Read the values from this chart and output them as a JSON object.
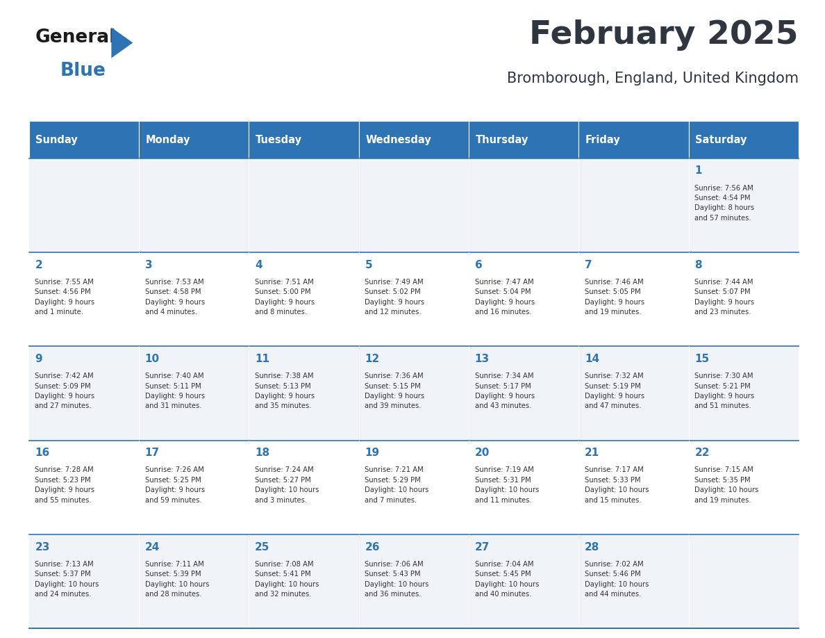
{
  "title": "February 2025",
  "subtitle": "Bromborough, England, United Kingdom",
  "header_bg": "#2E74B5",
  "header_text_color": "#FFFFFF",
  "day_names": [
    "Sunday",
    "Monday",
    "Tuesday",
    "Wednesday",
    "Thursday",
    "Friday",
    "Saturday"
  ],
  "title_color": "#2F3640",
  "subtitle_color": "#2F3640",
  "cell_bg_alt": "#F0F4F8",
  "cell_bg_main": "#FFFFFF",
  "day_number_color": "#2E74B5",
  "info_text_color": "#333333",
  "border_color": "#2E74B5",
  "logo_general_color": "#1A1A1A",
  "logo_blue_color": "#2E74B5",
  "weeks": [
    {
      "days": [
        {
          "date": null,
          "info": null
        },
        {
          "date": null,
          "info": null
        },
        {
          "date": null,
          "info": null
        },
        {
          "date": null,
          "info": null
        },
        {
          "date": null,
          "info": null
        },
        {
          "date": null,
          "info": null
        },
        {
          "date": 1,
          "info": "Sunrise: 7:56 AM\nSunset: 4:54 PM\nDaylight: 8 hours\nand 57 minutes."
        }
      ]
    },
    {
      "days": [
        {
          "date": 2,
          "info": "Sunrise: 7:55 AM\nSunset: 4:56 PM\nDaylight: 9 hours\nand 1 minute."
        },
        {
          "date": 3,
          "info": "Sunrise: 7:53 AM\nSunset: 4:58 PM\nDaylight: 9 hours\nand 4 minutes."
        },
        {
          "date": 4,
          "info": "Sunrise: 7:51 AM\nSunset: 5:00 PM\nDaylight: 9 hours\nand 8 minutes."
        },
        {
          "date": 5,
          "info": "Sunrise: 7:49 AM\nSunset: 5:02 PM\nDaylight: 9 hours\nand 12 minutes."
        },
        {
          "date": 6,
          "info": "Sunrise: 7:47 AM\nSunset: 5:04 PM\nDaylight: 9 hours\nand 16 minutes."
        },
        {
          "date": 7,
          "info": "Sunrise: 7:46 AM\nSunset: 5:05 PM\nDaylight: 9 hours\nand 19 minutes."
        },
        {
          "date": 8,
          "info": "Sunrise: 7:44 AM\nSunset: 5:07 PM\nDaylight: 9 hours\nand 23 minutes."
        }
      ]
    },
    {
      "days": [
        {
          "date": 9,
          "info": "Sunrise: 7:42 AM\nSunset: 5:09 PM\nDaylight: 9 hours\nand 27 minutes."
        },
        {
          "date": 10,
          "info": "Sunrise: 7:40 AM\nSunset: 5:11 PM\nDaylight: 9 hours\nand 31 minutes."
        },
        {
          "date": 11,
          "info": "Sunrise: 7:38 AM\nSunset: 5:13 PM\nDaylight: 9 hours\nand 35 minutes."
        },
        {
          "date": 12,
          "info": "Sunrise: 7:36 AM\nSunset: 5:15 PM\nDaylight: 9 hours\nand 39 minutes."
        },
        {
          "date": 13,
          "info": "Sunrise: 7:34 AM\nSunset: 5:17 PM\nDaylight: 9 hours\nand 43 minutes."
        },
        {
          "date": 14,
          "info": "Sunrise: 7:32 AM\nSunset: 5:19 PM\nDaylight: 9 hours\nand 47 minutes."
        },
        {
          "date": 15,
          "info": "Sunrise: 7:30 AM\nSunset: 5:21 PM\nDaylight: 9 hours\nand 51 minutes."
        }
      ]
    },
    {
      "days": [
        {
          "date": 16,
          "info": "Sunrise: 7:28 AM\nSunset: 5:23 PM\nDaylight: 9 hours\nand 55 minutes."
        },
        {
          "date": 17,
          "info": "Sunrise: 7:26 AM\nSunset: 5:25 PM\nDaylight: 9 hours\nand 59 minutes."
        },
        {
          "date": 18,
          "info": "Sunrise: 7:24 AM\nSunset: 5:27 PM\nDaylight: 10 hours\nand 3 minutes."
        },
        {
          "date": 19,
          "info": "Sunrise: 7:21 AM\nSunset: 5:29 PM\nDaylight: 10 hours\nand 7 minutes."
        },
        {
          "date": 20,
          "info": "Sunrise: 7:19 AM\nSunset: 5:31 PM\nDaylight: 10 hours\nand 11 minutes."
        },
        {
          "date": 21,
          "info": "Sunrise: 7:17 AM\nSunset: 5:33 PM\nDaylight: 10 hours\nand 15 minutes."
        },
        {
          "date": 22,
          "info": "Sunrise: 7:15 AM\nSunset: 5:35 PM\nDaylight: 10 hours\nand 19 minutes."
        }
      ]
    },
    {
      "days": [
        {
          "date": 23,
          "info": "Sunrise: 7:13 AM\nSunset: 5:37 PM\nDaylight: 10 hours\nand 24 minutes."
        },
        {
          "date": 24,
          "info": "Sunrise: 7:11 AM\nSunset: 5:39 PM\nDaylight: 10 hours\nand 28 minutes."
        },
        {
          "date": 25,
          "info": "Sunrise: 7:08 AM\nSunset: 5:41 PM\nDaylight: 10 hours\nand 32 minutes."
        },
        {
          "date": 26,
          "info": "Sunrise: 7:06 AM\nSunset: 5:43 PM\nDaylight: 10 hours\nand 36 minutes."
        },
        {
          "date": 27,
          "info": "Sunrise: 7:04 AM\nSunset: 5:45 PM\nDaylight: 10 hours\nand 40 minutes."
        },
        {
          "date": 28,
          "info": "Sunrise: 7:02 AM\nSunset: 5:46 PM\nDaylight: 10 hours\nand 44 minutes."
        },
        {
          "date": null,
          "info": null
        }
      ]
    }
  ]
}
